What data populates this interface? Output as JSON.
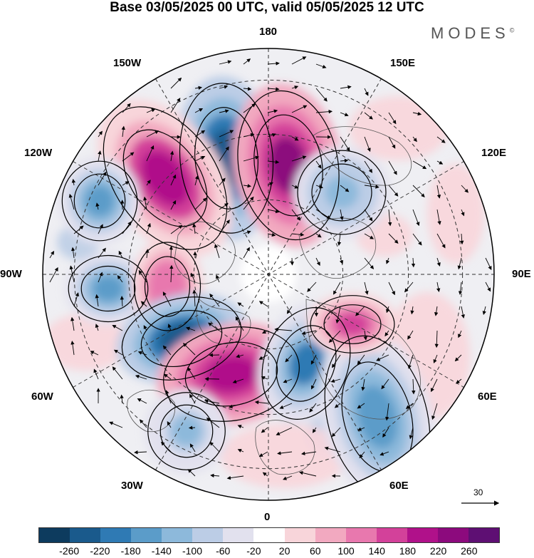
{
  "title": "Base 03/05/2025 00 UTC, valid 05/05/2025 12 UTC",
  "brand": "MODES",
  "brand_mark": "©",
  "longitude_labels": {
    "top": "180",
    "bottom": "0",
    "left": "90W",
    "right": "90E",
    "upper_left_1": "150W",
    "upper_left_2": "120W",
    "upper_right_1": "150E",
    "upper_right_2": "120E",
    "lower_left_1": "60W",
    "lower_left_2": "30W",
    "lower_right_1": "60E",
    "lower_right_2": "30E"
  },
  "vector_reference": "30",
  "colorbar": {
    "tick_labels": [
      "-260",
      "-220",
      "-180",
      "-140",
      "-100",
      "-60",
      "-20",
      "20",
      "60",
      "100",
      "140",
      "180",
      "220",
      "260"
    ],
    "colors": [
      "#0d3b5e",
      "#1a5a8c",
      "#2f7ab4",
      "#5b9cc9",
      "#8db9db",
      "#bccde6",
      "#e2e1ee",
      "#ffffff",
      "#f8d5da",
      "#f2a9c0",
      "#e878ae",
      "#d3419a",
      "#b0118a",
      "#8c0a7d",
      "#5e0f73"
    ]
  },
  "projection": "north-polar-stereographic",
  "anomaly_centers": [
    {
      "sign": "negative",
      "level": -240,
      "region": "north pacific near dateline"
    },
    {
      "sign": "positive",
      "level": 240,
      "region": "western pacific near 170E"
    },
    {
      "sign": "positive",
      "level": 200,
      "region": "gulf of alaska"
    },
    {
      "sign": "negative",
      "level": -160,
      "region": "western canada"
    },
    {
      "sign": "negative",
      "level": -140,
      "region": "hudson bay"
    },
    {
      "sign": "positive",
      "level": 140,
      "region": "northern canada"
    },
    {
      "sign": "negative",
      "level": -240,
      "region": "baffin bay / greenland west"
    },
    {
      "sign": "positive",
      "level": 220,
      "region": "greenland sea / north atlantic"
    },
    {
      "sign": "negative",
      "level": -180,
      "region": "scandinavia / barents"
    },
    {
      "sign": "negative",
      "level": -160,
      "region": "eastern europe"
    },
    {
      "sign": "positive",
      "level": 180,
      "region": "central siberia"
    },
    {
      "sign": "negative",
      "level": -100,
      "region": "north atlantic"
    },
    {
      "sign": "negative",
      "level": -120,
      "region": "east siberia"
    }
  ]
}
